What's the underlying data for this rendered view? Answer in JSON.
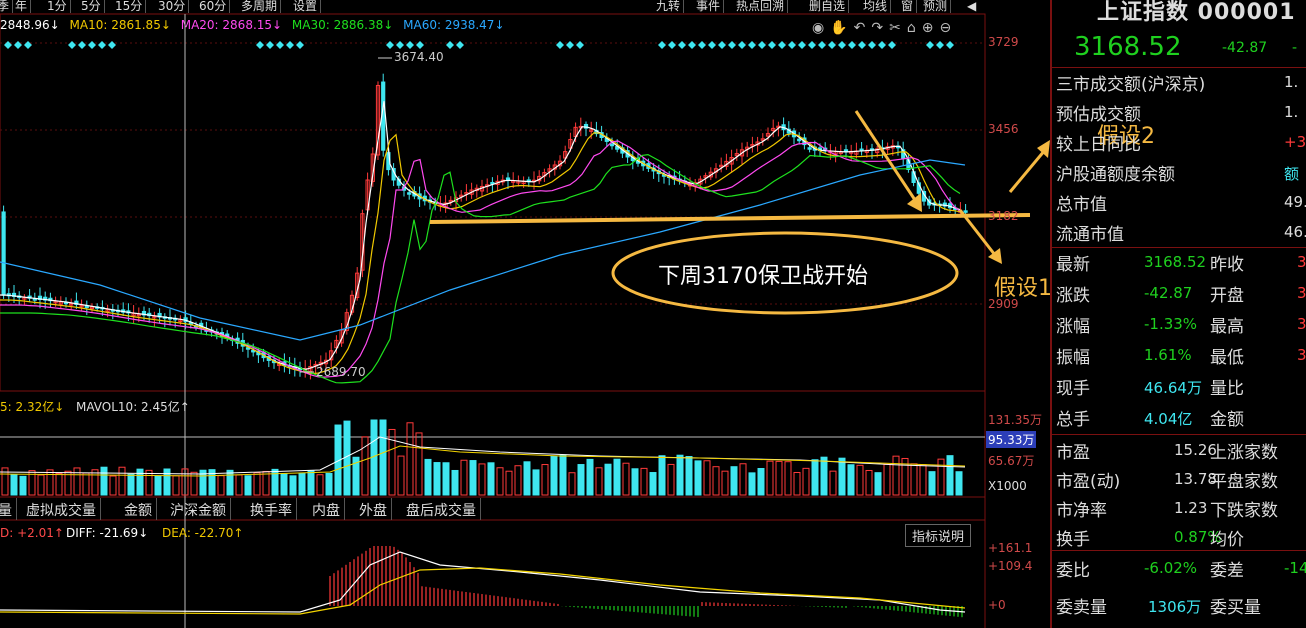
{
  "toolbar": {
    "left_tabs": [
      "季",
      "年",
      "1分",
      "5分",
      "15分",
      "30分",
      "60分",
      "多周期",
      "设置"
    ],
    "right_tabs": [
      "九转",
      "事件",
      "热点回溯",
      "删自选",
      "均线",
      "窗",
      "预测"
    ]
  },
  "ma": {
    "ma5": "2848.96↓",
    "ma10": "MA10: 2861.85↓",
    "ma20": "MA20: 2868.15↓",
    "ma30": "MA30: 2886.38↓",
    "ma60": "MA60: 2938.47↓"
  },
  "price_axis": [
    "3729",
    "3456",
    "3182",
    "2909"
  ],
  "chart_annotations": {
    "high": "3674.40",
    "low": "2689.70",
    "callout": "下周3170保卫战开始",
    "hyp1": "假设1",
    "hyp2": "假设2"
  },
  "vol": {
    "label_ma5": "5: 2.32亿↓",
    "label_ma10": "MAVOL10: 2.45亿↑",
    "axis": [
      "131.35万",
      "95.33万",
      "65.67万",
      "X1000"
    ]
  },
  "lower_tabs": [
    "量",
    "虚拟成交量",
    "金额",
    "沪深金额",
    "换手率",
    "内盘",
    "外盘",
    "盘后成交量"
  ],
  "macd": {
    "label_macd": "D: +2.01↑",
    "label_diff": "DIFF: -21.69↓",
    "label_dea": "DEA: -22.70↑",
    "help": "指标说明",
    "axis": [
      "+161.1",
      "+109.4",
      "+0"
    ]
  },
  "quote": {
    "title": "上证指数 000001",
    "price": "3168.52",
    "change": "-42.87",
    "change_tail": "-",
    "rows_top": [
      {
        "label": "三市成交额(沪深京)",
        "value": "1."
      },
      {
        "label": "预估成交额",
        "value": "1."
      },
      {
        "label": "较上日同比",
        "value": "+3"
      },
      {
        "label": "沪股通额度余额",
        "value": "额"
      },
      {
        "label": "总市值",
        "value": "49."
      },
      {
        "label": "流通市值",
        "value": "46."
      }
    ],
    "rows_stats": [
      {
        "label": "最新",
        "value": "3168.52",
        "label2": "昨收",
        "value2": "3"
      },
      {
        "label": "涨跌",
        "value": "-42.87",
        "label2": "开盘",
        "value2": "3"
      },
      {
        "label": "涨幅",
        "value": "-1.33%",
        "label2": "最高",
        "value2": "3"
      },
      {
        "label": "振幅",
        "value": "1.61%",
        "label2": "最低",
        "value2": "3"
      },
      {
        "label": "现手",
        "value": "46.64万",
        "label2": "量比",
        "value2": ""
      },
      {
        "label": "总手",
        "value": "4.04亿",
        "label2": "金额",
        "value2": ""
      }
    ],
    "rows_fund": [
      {
        "label": "市盈",
        "value": "15.26",
        "label2": "上涨家数"
      },
      {
        "label": "市盈(动)",
        "value": "13.78",
        "label2": "平盘家数"
      },
      {
        "label": "市净率",
        "value": "1.23",
        "label2": "下跌家数"
      },
      {
        "label": "换手",
        "value": "0.87%",
        "label2": "均价"
      }
    ],
    "weibi_label": "委比",
    "weibi_value": "-6.02%",
    "weicha_label": "委差",
    "weicha_value": "-14",
    "weimai_label": "委卖量",
    "weimai_value": "1306万",
    "weimai2_label": "委买量"
  },
  "colors": {
    "up": "#ff3a3a",
    "down": "#3fe6f0",
    "green": "#1fd01f",
    "yellow": "#f2d300",
    "ma10": "#f0c800",
    "ma20": "#ff4af0",
    "ma30": "#1ee01e",
    "ma60": "#2aa8ff",
    "annot": "#f5b942"
  }
}
